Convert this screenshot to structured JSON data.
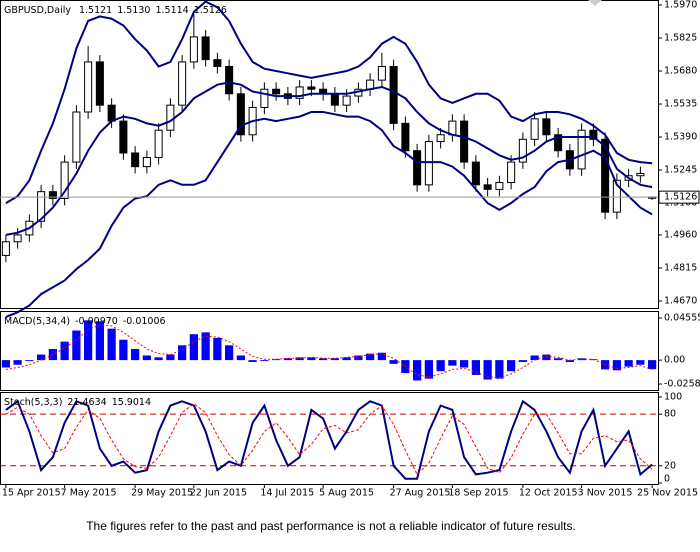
{
  "footer": "The figures refer to the past and past performance is not a reliable indicator of future results.",
  "chart_data": [
    {
      "type": "candlestick",
      "title": "GBPUSD,Daily",
      "ohlc_labels": [
        "1.5121",
        "1.5130",
        "1.5114",
        "1.5126"
      ],
      "categories": [
        "15 Apr 2015",
        null,
        null,
        null,
        null,
        "7 May 2015",
        null,
        null,
        null,
        null,
        null,
        "29 May 2015",
        null,
        null,
        null,
        null,
        "22 Jun 2015",
        null,
        null,
        null,
        null,
        null,
        "14 Jul 2015",
        null,
        null,
        null,
        null,
        "5 Aug 2015",
        null,
        null,
        null,
        null,
        null,
        "27 Aug 2015",
        null,
        null,
        null,
        null,
        "18 Sep 2015",
        null,
        null,
        null,
        null,
        null,
        "12 Oct 2015",
        null,
        null,
        null,
        null,
        "3 Nov 2015",
        null,
        null,
        null,
        null,
        null,
        "25 Nov 2015"
      ],
      "open": [
        1.487,
        1.493,
        1.496,
        1.502,
        1.515,
        1.512,
        1.528,
        1.55,
        1.572,
        1.553,
        1.546,
        1.532,
        1.526,
        1.53,
        1.542,
        1.553,
        1.572,
        1.583,
        1.573,
        1.57,
        1.558,
        1.54,
        1.552,
        1.56,
        1.558,
        1.556,
        1.561,
        1.56,
        1.558,
        1.553,
        1.557,
        1.56,
        1.564,
        1.57,
        1.545,
        1.533,
        1.518,
        1.537,
        1.54,
        1.546,
        1.528,
        1.518,
        1.516,
        1.519,
        1.528,
        1.538,
        1.547,
        1.54,
        1.533,
        1.525,
        1.542,
        1.538,
        1.506,
        1.52,
        1.522,
        1.5121
      ],
      "high": [
        1.496,
        1.499,
        1.505,
        1.518,
        1.518,
        1.531,
        1.553,
        1.579,
        1.575,
        1.556,
        1.549,
        1.535,
        1.533,
        1.545,
        1.556,
        1.575,
        1.593,
        1.586,
        1.576,
        1.573,
        1.561,
        1.555,
        1.563,
        1.563,
        1.561,
        1.564,
        1.564,
        1.563,
        1.561,
        1.56,
        1.563,
        1.567,
        1.576,
        1.573,
        1.548,
        1.536,
        1.54,
        1.543,
        1.549,
        1.549,
        1.531,
        1.521,
        1.522,
        1.531,
        1.541,
        1.55,
        1.55,
        1.543,
        1.536,
        1.545,
        1.545,
        1.541,
        1.523,
        1.525,
        1.526,
        1.513
      ],
      "low": [
        1.484,
        1.49,
        1.493,
        1.499,
        1.509,
        1.509,
        1.525,
        1.547,
        1.55,
        1.543,
        1.529,
        1.523,
        1.523,
        1.527,
        1.539,
        1.55,
        1.569,
        1.57,
        1.567,
        1.555,
        1.537,
        1.537,
        1.549,
        1.555,
        1.553,
        1.553,
        1.557,
        1.555,
        1.55,
        1.55,
        1.554,
        1.557,
        1.561,
        1.542,
        1.53,
        1.515,
        1.515,
        1.534,
        1.537,
        1.525,
        1.515,
        1.513,
        1.513,
        1.516,
        1.525,
        1.535,
        1.537,
        1.53,
        1.522,
        1.522,
        1.535,
        1.503,
        1.503,
        1.517,
        1.519,
        1.5114
      ],
      "close": [
        1.493,
        1.496,
        1.502,
        1.515,
        1.512,
        1.528,
        1.55,
        1.572,
        1.553,
        1.546,
        1.532,
        1.526,
        1.53,
        1.542,
        1.553,
        1.572,
        1.583,
        1.573,
        1.57,
        1.558,
        1.54,
        1.552,
        1.56,
        1.558,
        1.556,
        1.561,
        1.56,
        1.558,
        1.553,
        1.557,
        1.56,
        1.564,
        1.57,
        1.545,
        1.533,
        1.518,
        1.537,
        1.54,
        1.546,
        1.528,
        1.518,
        1.516,
        1.519,
        1.528,
        1.538,
        1.547,
        1.54,
        1.533,
        1.525,
        1.542,
        1.538,
        1.506,
        1.52,
        1.522,
        1.523,
        1.5126
      ],
      "bands": {
        "color": "#000080",
        "upper": [
          1.51,
          1.513,
          1.52,
          1.533,
          1.545,
          1.56,
          1.578,
          1.59,
          1.592,
          1.591,
          1.588,
          1.582,
          1.577,
          1.57,
          1.572,
          1.582,
          1.594,
          1.5985,
          1.596,
          1.59,
          1.58,
          1.572,
          1.569,
          1.568,
          1.567,
          1.566,
          1.565,
          1.566,
          1.567,
          1.568,
          1.57,
          1.574,
          1.58,
          1.583,
          1.58,
          1.572,
          1.562,
          1.556,
          1.554,
          1.556,
          1.558,
          1.558,
          1.555,
          1.548,
          1.546,
          1.549,
          1.55,
          1.55,
          1.549,
          1.547,
          1.544,
          1.54,
          1.532,
          1.529,
          1.528,
          1.5275
        ],
        "middle": [
          1.496,
          1.497,
          1.499,
          1.503,
          1.508,
          1.515,
          1.523,
          1.533,
          1.541,
          1.546,
          1.548,
          1.547,
          1.545,
          1.544,
          1.546,
          1.55,
          1.556,
          1.559,
          1.562,
          1.563,
          1.562,
          1.559,
          1.558,
          1.557,
          1.557,
          1.557,
          1.558,
          1.558,
          1.558,
          1.558,
          1.559,
          1.56,
          1.561,
          1.559,
          1.556,
          1.55,
          1.545,
          1.542,
          1.54,
          1.539,
          1.537,
          1.534,
          1.531,
          1.529,
          1.53,
          1.533,
          1.537,
          1.539,
          1.539,
          1.539,
          1.539,
          1.535,
          1.525,
          1.521,
          1.518,
          1.517
        ],
        "lower": [
          1.46,
          1.462,
          1.465,
          1.47,
          1.473,
          1.476,
          1.481,
          1.485,
          1.49,
          1.5,
          1.508,
          1.512,
          1.513,
          1.518,
          1.52,
          1.518,
          1.518,
          1.52,
          1.528,
          1.536,
          1.544,
          1.546,
          1.547,
          1.546,
          1.547,
          1.548,
          1.55,
          1.55,
          1.549,
          1.548,
          1.548,
          1.546,
          1.542,
          1.535,
          1.532,
          1.528,
          1.528,
          1.528,
          1.526,
          1.522,
          1.516,
          1.51,
          1.507,
          1.51,
          1.514,
          1.517,
          1.524,
          1.528,
          1.529,
          1.531,
          1.533,
          1.53,
          1.518,
          1.513,
          1.508,
          1.505
        ]
      },
      "last_price": {
        "value": 1.5126,
        "label": "1.5126"
      },
      "ylim": [
        1.4639,
        1.5992
      ],
      "yticks": [
        {
          "value": 1.597,
          "label": "1.5970"
        },
        {
          "value": 1.5825,
          "label": "1.5825"
        },
        {
          "value": 1.568,
          "label": "1.5680"
        },
        {
          "value": 1.5535,
          "label": "1.5535"
        },
        {
          "value": 1.539,
          "label": "1.5390"
        },
        {
          "value": 1.5245,
          "label": "1.5245"
        },
        {
          "value": 1.51,
          "label": "1.5100"
        },
        {
          "value": 1.496,
          "label": "1.4960"
        },
        {
          "value": 1.4815,
          "label": "1.4815"
        },
        {
          "value": 1.467,
          "label": "1.4670"
        }
      ]
    },
    {
      "type": "bar",
      "title": "MACD(5,34,4)",
      "color": "#0000ff",
      "values": [
        -0.008,
        -0.005,
        -0.001,
        0.006,
        0.012,
        0.02,
        0.032,
        0.043,
        0.042,
        0.034,
        0.022,
        0.012,
        0.005,
        0.003,
        0.006,
        0.016,
        0.028,
        0.03,
        0.024,
        0.016,
        0.005,
        -0.002,
        -0.001,
        0.001,
        0.002,
        0.003,
        0.003,
        0.002,
        0.002,
        0.003,
        0.005,
        0.007,
        0.008,
        -0.004,
        -0.014,
        -0.022,
        -0.02,
        -0.012,
        -0.006,
        -0.008,
        -0.016,
        -0.021,
        -0.02,
        -0.012,
        -0.002,
        0.005,
        0.006,
        0.002,
        -0.002,
        0.002,
        0.001,
        -0.01,
        -0.011,
        -0.007,
        -0.005,
        -0.0097
      ],
      "signal": {
        "color": "#ff0000",
        "values": [
          -0.01,
          -0.008,
          -0.005,
          0.0,
          0.006,
          0.013,
          0.022,
          0.033,
          0.038,
          0.037,
          0.03,
          0.021,
          0.012,
          0.007,
          0.006,
          0.011,
          0.02,
          0.026,
          0.025,
          0.02,
          0.012,
          0.004,
          0.001,
          0.001,
          0.002,
          0.002,
          0.003,
          0.002,
          0.002,
          0.003,
          0.004,
          0.006,
          0.007,
          0.002,
          -0.007,
          -0.016,
          -0.018,
          -0.015,
          -0.01,
          -0.009,
          -0.013,
          -0.018,
          -0.019,
          -0.015,
          -0.008,
          0.0,
          0.004,
          0.003,
          0.0,
          0.001,
          0.001,
          -0.005,
          -0.009,
          -0.008,
          -0.006,
          -0.01006
        ]
      },
      "readout_labels": [
        "-0.00970",
        "-0.01006"
      ],
      "ylim": [
        -0.0323,
        0.0531
      ],
      "yticks": [
        0.04555,
        {
          "value": 0,
          "label": "0.00"
        },
        -0.0258
      ]
    },
    {
      "type": "line",
      "title": "Stoch(5,3,3)",
      "series": [
        {
          "color": "#000080",
          "values": [
            85,
            95,
            60,
            15,
            30,
            70,
            95,
            90,
            40,
            20,
            25,
            12,
            15,
            60,
            90,
            95,
            90,
            60,
            15,
            25,
            20,
            70,
            90,
            50,
            20,
            30,
            85,
            75,
            40,
            60,
            85,
            95,
            90,
            20,
            5,
            5,
            60,
            90,
            85,
            30,
            10,
            12,
            15,
            60,
            95,
            85,
            60,
            30,
            12,
            60,
            85,
            20,
            40,
            60,
            10,
            21.4634
          ]
        },
        {
          "color": "#ff0000",
          "values": [
            80,
            88,
            80,
            55,
            35,
            40,
            65,
            85,
            75,
            50,
            28,
            19,
            17,
            30,
            55,
            82,
            92,
            82,
            55,
            33,
            20,
            38,
            60,
            70,
            53,
            33,
            45,
            63,
            67,
            58,
            62,
            80,
            90,
            68,
            38,
            10,
            23,
            52,
            78,
            68,
            42,
            17,
            12,
            29,
            57,
            80,
            80,
            58,
            34,
            34,
            52,
            55,
            48,
            50,
            28,
            15.9014
          ]
        }
      ],
      "levels": [
        80,
        20
      ],
      "level_color": "#cc0000",
      "ylim": [
        -1.2,
        105.8
      ],
      "yticks": [
        100,
        80,
        20,
        0
      ]
    }
  ]
}
